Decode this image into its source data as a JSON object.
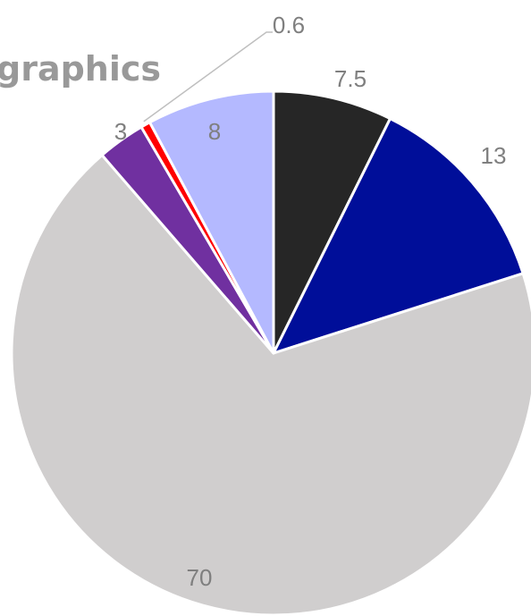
{
  "chart_data": {
    "type": "pie",
    "title": "graphics",
    "start_angle_deg": 0,
    "direction": "clockwise",
    "slices": [
      {
        "label": "7.5",
        "value": 7.5,
        "color": "#262626"
      },
      {
        "label": "13",
        "value": 13,
        "color": "#000e99"
      },
      {
        "label": "70",
        "value": 70,
        "color": "#d0cece"
      },
      {
        "label": "3",
        "value": 3,
        "color": "#7030a0"
      },
      {
        "label": "0.6",
        "value": 0.6,
        "color": "#ff0000"
      },
      {
        "label": "8",
        "value": 8,
        "color": "#b4b9ff"
      }
    ]
  }
}
